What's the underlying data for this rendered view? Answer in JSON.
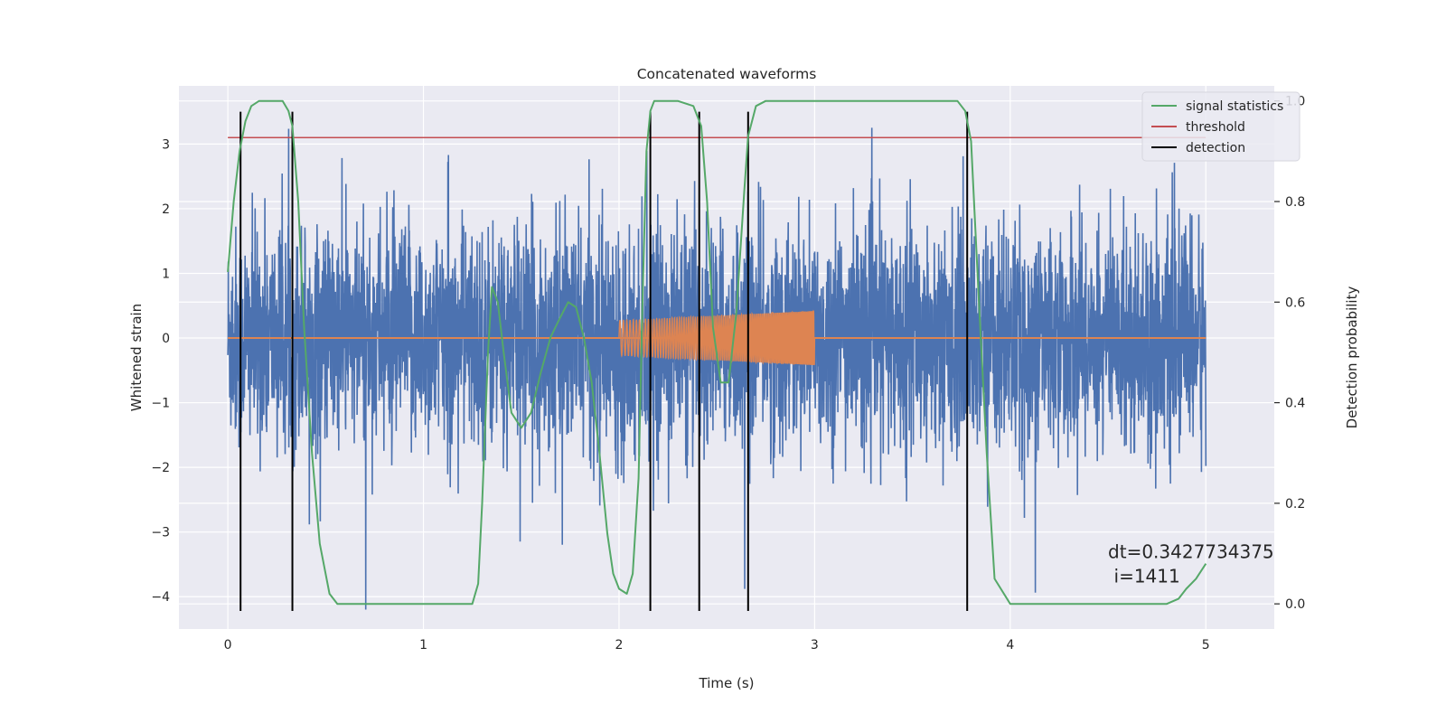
{
  "chart_data": {
    "type": "line",
    "title": "Concatenated waveforms",
    "xlabel": "Time (s)",
    "ylabel": "Whitened strain",
    "y2label": "Detection probability",
    "xlim": [
      -0.25,
      5.35
    ],
    "ylim": [
      -4.5,
      3.9
    ],
    "y2lim": [
      -0.05,
      1.03
    ],
    "xticks": [
      0,
      1,
      2,
      3,
      4,
      5
    ],
    "yticks": [
      -4,
      -3,
      -2,
      -1,
      0,
      1,
      2,
      3
    ],
    "y2ticks": [
      0.0,
      0.2,
      0.4,
      0.6,
      0.8,
      1.0
    ],
    "grid": true,
    "legend_position": "top-right",
    "legend": [
      {
        "label": "signal statistics",
        "color": "#55a868"
      },
      {
        "label": "threshold",
        "color": "#c44e52"
      },
      {
        "label": "detection",
        "color": "#000000"
      }
    ],
    "series": [
      {
        "key": "strain",
        "kind": "noise",
        "color": "#4c72b0",
        "axis": "left",
        "x_range": [
          0,
          5
        ],
        "typical_amplitude": 1.0,
        "max": 3.45,
        "min": -4.2
      },
      {
        "key": "injection",
        "kind": "chirp",
        "color": "#dd8452",
        "axis": "left",
        "x_range": [
          2,
          3
        ],
        "amplitude_start": 0.27,
        "amplitude_end": 0.42,
        "baseline": 0
      },
      {
        "name": "signal statistics",
        "color": "#55a868",
        "axis": "right",
        "x": [
          0.0,
          0.03,
          0.06,
          0.09,
          0.12,
          0.16,
          0.22,
          0.28,
          0.31,
          0.33,
          0.36,
          0.39,
          0.43,
          0.47,
          0.52,
          0.56,
          0.8,
          1.1,
          1.25,
          1.28,
          1.3,
          1.33,
          1.35,
          1.38,
          1.41,
          1.45,
          1.5,
          1.55,
          1.6,
          1.65,
          1.7,
          1.74,
          1.78,
          1.82,
          1.86,
          1.9,
          1.94,
          1.97,
          2.0,
          2.04,
          2.07,
          2.1,
          2.12,
          2.14,
          2.16,
          2.18,
          2.22,
          2.3,
          2.38,
          2.42,
          2.45,
          2.48,
          2.52,
          2.56,
          2.6,
          2.64,
          2.66,
          2.7,
          2.75,
          2.8,
          3.0,
          3.5,
          3.73,
          3.77,
          3.8,
          3.84,
          3.88,
          3.92,
          4.0,
          4.3,
          4.6,
          4.8,
          4.86,
          4.9,
          4.95,
          5.0
        ],
        "values": [
          0.66,
          0.8,
          0.9,
          0.96,
          0.99,
          1.0,
          1.0,
          1.0,
          0.98,
          0.95,
          0.8,
          0.55,
          0.3,
          0.12,
          0.02,
          0.0,
          0.0,
          0.0,
          0.0,
          0.04,
          0.2,
          0.5,
          0.63,
          0.6,
          0.5,
          0.38,
          0.35,
          0.38,
          0.46,
          0.53,
          0.57,
          0.6,
          0.59,
          0.53,
          0.44,
          0.3,
          0.14,
          0.06,
          0.03,
          0.02,
          0.06,
          0.25,
          0.6,
          0.9,
          0.98,
          1.0,
          1.0,
          1.0,
          0.99,
          0.95,
          0.8,
          0.55,
          0.44,
          0.44,
          0.58,
          0.82,
          0.93,
          0.99,
          1.0,
          1.0,
          1.0,
          1.0,
          1.0,
          0.98,
          0.92,
          0.6,
          0.3,
          0.05,
          0.0,
          0.0,
          0.0,
          0.0,
          0.01,
          0.03,
          0.05,
          0.08
        ]
      },
      {
        "name": "threshold",
        "color": "#c44e52",
        "axis": "left",
        "x": [
          0,
          5
        ],
        "values": [
          3.1,
          3.1
        ]
      },
      {
        "name": "detection",
        "color": "#000000",
        "kind": "vertical_lines",
        "x": [
          0.065,
          0.33,
          2.16,
          2.41,
          2.66,
          3.78
        ]
      }
    ],
    "annotations": [
      {
        "text": "dt=0.3427734375",
        "x": 4.5,
        "y": -3.4
      },
      {
        "text": "i=1411",
        "x": 4.53,
        "y": -3.78
      }
    ]
  }
}
